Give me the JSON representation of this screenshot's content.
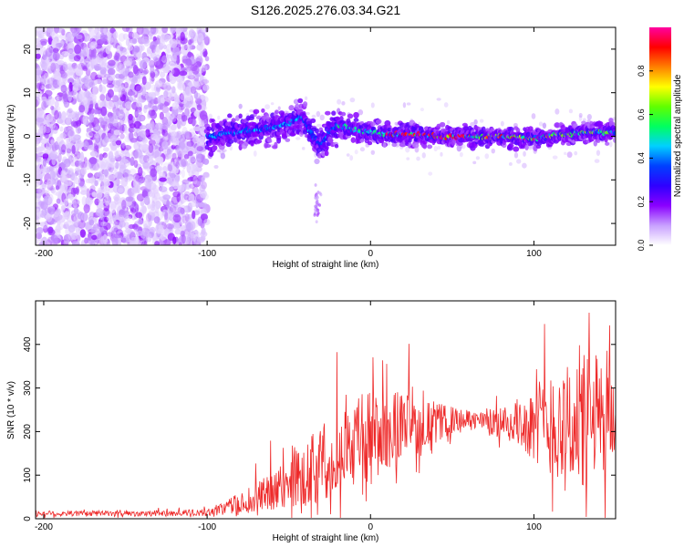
{
  "title": "S126.2025.276.03.34.G21",
  "chart_data": [
    {
      "type": "heatmap",
      "title": "",
      "xlabel": "Height of straight line (km)",
      "ylabel": "Frequency (Hz)",
      "xlim": [
        -205,
        150
      ],
      "ylim": [
        -25,
        25
      ],
      "xticks": [
        -200,
        -100,
        0,
        100
      ],
      "yticks": [
        -20,
        -10,
        0,
        10,
        20
      ],
      "grid": false,
      "colorbar": {
        "label": "Normalized spectral amplitude",
        "range": [
          0,
          1
        ],
        "ticks": [
          "0.0",
          "0.2",
          "0.4",
          "0.6",
          "0.8"
        ],
        "colors": [
          "#ffffff",
          "#c8a0ff",
          "#8a00ff",
          "#2f00ff",
          "#0040ff",
          "#00d0ff",
          "#00ff60",
          "#60ff00",
          "#ffff00",
          "#ff8000",
          "#ff0000",
          "#ff00a0"
        ]
      },
      "ridge": {
        "description_points_x": [
          -100,
          -90,
          -80,
          -70,
          -60,
          -50,
          -42,
          -35,
          -30,
          -25,
          -20,
          -10,
          0,
          10,
          20,
          30,
          40,
          60,
          80,
          100,
          120,
          140,
          150
        ],
        "description_points_y": [
          0,
          0.5,
          1,
          1.5,
          2,
          3,
          4.5,
          0,
          -2,
          1,
          2.5,
          1.5,
          1,
          0.5,
          0.5,
          0.5,
          0,
          0,
          0,
          -0.5,
          0.5,
          1,
          1
        ]
      },
      "noise_region": [
        -205,
        -100
      ]
    },
    {
      "type": "line",
      "title": "",
      "xlabel": "Height of straight line (km)",
      "ylabel": "SNR (10 * v/v)",
      "xlim": [
        -205,
        150
      ],
      "ylim": [
        0,
        500
      ],
      "xticks": [
        -200,
        -100,
        0,
        100
      ],
      "yticks": [
        0,
        100,
        200,
        300,
        400
      ],
      "grid": false,
      "color": "#ee2a2a",
      "envelope": {
        "x": [
          -205,
          -150,
          -100,
          -90,
          -80,
          -70,
          -60,
          -50,
          -40,
          -30,
          -20,
          -10,
          0,
          10,
          20,
          30,
          40,
          50,
          60,
          70,
          80,
          90,
          100,
          110,
          120,
          130,
          140,
          150
        ],
        "mean": [
          12,
          12,
          14,
          25,
          35,
          45,
          60,
          80,
          105,
          130,
          150,
          175,
          190,
          205,
          210,
          215,
          220,
          225,
          225,
          225,
          220,
          220,
          215,
          215,
          215,
          220,
          220,
          230
        ],
        "spread": [
          8,
          8,
          10,
          20,
          30,
          45,
          60,
          75,
          95,
          110,
          120,
          130,
          140,
          120,
          100,
          80,
          60,
          40,
          30,
          30,
          50,
          70,
          100,
          150,
          180,
          200,
          200,
          150
        ]
      }
    }
  ]
}
